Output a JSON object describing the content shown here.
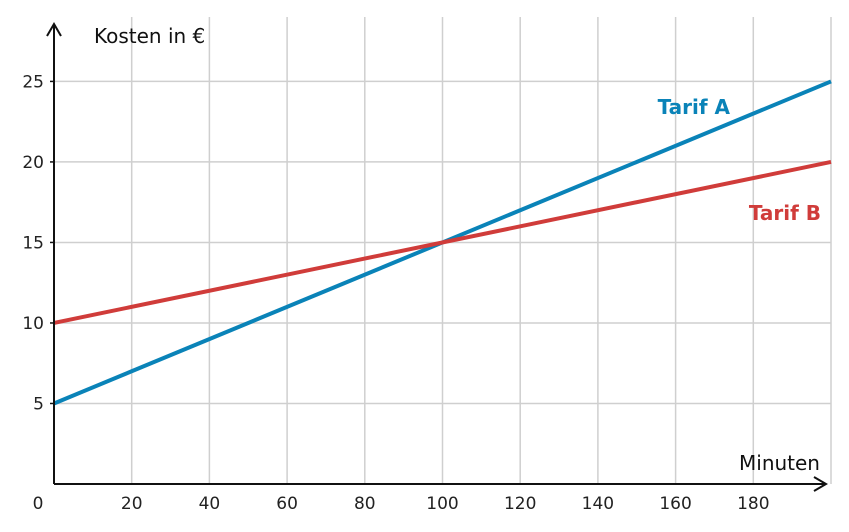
{
  "chart_data": {
    "type": "line",
    "xlabel": "Minuten",
    "ylabel": "Kosten in €",
    "xlim": [
      0,
      200
    ],
    "ylim": [
      0,
      29
    ],
    "x_ticks": [
      20,
      40,
      60,
      80,
      100,
      120,
      140,
      160,
      180
    ],
    "y_ticks": [
      5,
      10,
      15,
      20,
      25
    ],
    "origin_label": "0",
    "grid": true,
    "series": [
      {
        "name": "Tarif A",
        "color": "#0a83b8",
        "x": [
          0,
          200
        ],
        "y": [
          5,
          25
        ]
      },
      {
        "name": "Tarif B",
        "color": "#d03c3a",
        "x": [
          0,
          200
        ],
        "y": [
          10,
          20
        ]
      }
    ]
  }
}
